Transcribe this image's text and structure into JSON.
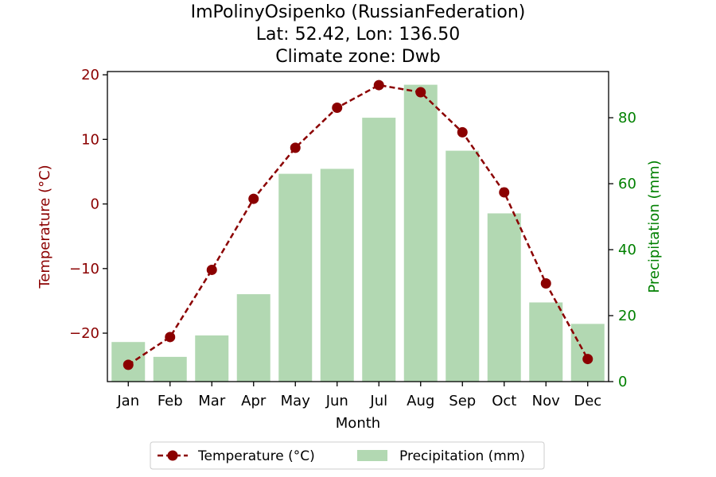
{
  "chart_data": {
    "type": "bar+line",
    "title_lines": [
      "ImPolinyOsipenko (RussianFederation)",
      "Lat: 52.42, Lon: 136.50",
      "Climate zone: Dwb"
    ],
    "xlabel": "Month",
    "categories": [
      "Jan",
      "Feb",
      "Mar",
      "Apr",
      "May",
      "Jun",
      "Jul",
      "Aug",
      "Sep",
      "Oct",
      "Nov",
      "Dec"
    ],
    "temperature": {
      "name": "Temperature (°C)",
      "axis_label": "Temperature (°C)",
      "values": [
        -24.9,
        -20.6,
        -10.2,
        0.8,
        8.7,
        14.9,
        18.4,
        17.3,
        11.1,
        1.8,
        -12.3,
        -24.0
      ],
      "ylim": [
        -27.5,
        20.5
      ],
      "ticks": [
        -20,
        -10,
        0,
        10,
        20
      ],
      "tick_labels": [
        "−20",
        "−10",
        "0",
        "10",
        "20"
      ],
      "color": "#8b0000"
    },
    "precipitation": {
      "name": "Precipitation (mm)",
      "axis_label": "Precipitation (mm)",
      "values": [
        12,
        7.5,
        14,
        26.5,
        63,
        64.5,
        80,
        90,
        70,
        51,
        24,
        17.5
      ],
      "ylim": [
        0,
        94
      ],
      "ticks": [
        0,
        20,
        40,
        60,
        80
      ],
      "tick_labels": [
        "0",
        "20",
        "40",
        "60",
        "80"
      ],
      "color": "#b2d8b2",
      "tick_color": "#008000"
    },
    "legend_placement": "bottom-center",
    "grid": false
  }
}
